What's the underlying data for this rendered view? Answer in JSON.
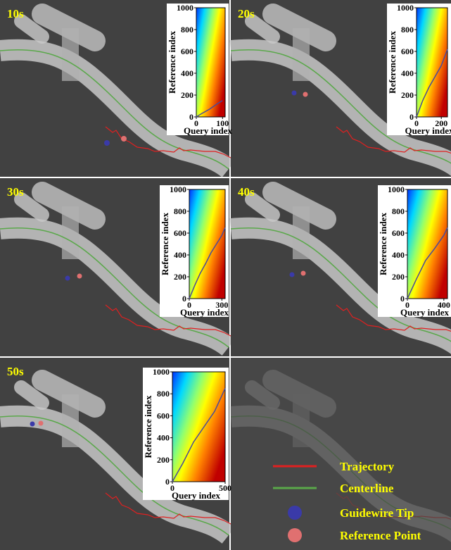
{
  "panels": [
    {
      "label": "10s",
      "inset": {
        "xlabel": "Query index",
        "ylabel": "Reference index",
        "xlim": [
          0,
          110
        ],
        "xticks": [
          0,
          100
        ],
        "ylim": [
          0,
          1000
        ],
        "yticks": [
          0,
          200,
          400,
          600,
          800,
          1000
        ],
        "path": {
          "x": [
            0,
            20,
            50,
            80,
            100
          ],
          "y": [
            0,
            30,
            70,
            120,
            150
          ]
        }
      }
    },
    {
      "label": "20s",
      "inset": {
        "xlabel": "Query index",
        "ylabel": "Reference index",
        "xlim": [
          0,
          250
        ],
        "xticks": [
          0,
          200
        ],
        "ylim": [
          0,
          1000
        ],
        "yticks": [
          0,
          200,
          400,
          600,
          800,
          1000
        ],
        "path": {
          "x": [
            0,
            50,
            100,
            150,
            200,
            250
          ],
          "y": [
            0,
            150,
            270,
            370,
            470,
            620
          ]
        }
      }
    },
    {
      "label": "30s",
      "inset": {
        "xlabel": "Query index",
        "ylabel": "Reference index",
        "xlim": [
          0,
          330
        ],
        "xticks": [
          0,
          300
        ],
        "ylim": [
          0,
          1000
        ],
        "yticks": [
          0,
          200,
          400,
          600,
          800,
          1000
        ],
        "path": {
          "x": [
            0,
            50,
            100,
            150,
            200,
            250,
            300,
            330
          ],
          "y": [
            0,
            120,
            230,
            320,
            420,
            500,
            580,
            650
          ]
        }
      }
    },
    {
      "label": "40s",
      "inset": {
        "xlabel": "Query index",
        "ylabel": "Reference index",
        "xlim": [
          0,
          440
        ],
        "xticks": [
          0,
          400
        ],
        "ylim": [
          0,
          1000
        ],
        "yticks": [
          0,
          200,
          400,
          600,
          800,
          1000
        ],
        "path": {
          "x": [
            0,
            100,
            200,
            300,
            400,
            440
          ],
          "y": [
            0,
            180,
            350,
            460,
            580,
            650
          ]
        }
      }
    },
    {
      "label": "50s",
      "inset": {
        "xlabel": "Query index",
        "ylabel": "Reference index",
        "xlim": [
          0,
          500
        ],
        "xticks": [
          0,
          500
        ],
        "ylim": [
          0,
          1000
        ],
        "yticks": [
          0,
          200,
          400,
          600,
          800,
          1000
        ],
        "path": {
          "x": [
            0,
            100,
            200,
            300,
            400,
            500
          ],
          "y": [
            0,
            170,
            360,
            500,
            640,
            850
          ]
        }
      }
    }
  ],
  "legend": [
    {
      "label": "Trajectory",
      "color": "#e02020"
    },
    {
      "label": "Centerline",
      "color": "#5aa84a"
    },
    {
      "label": "Guidewire Tip",
      "color": "#3a3aa8"
    },
    {
      "label": "Reference Point",
      "color": "#e07070"
    }
  ]
}
